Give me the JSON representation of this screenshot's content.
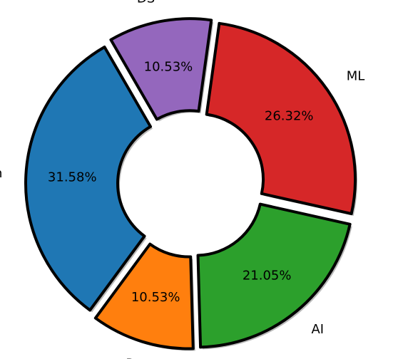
{
  "chart_data": {
    "type": "pie",
    "donut": true,
    "categories": [
      "python",
      "R",
      "AI",
      "ML",
      "DS"
    ],
    "values": [
      6,
      2,
      4,
      5,
      2
    ],
    "percent_labels": [
      "31.58%",
      "10.53%",
      "21.05%",
      "26.32%",
      "10.53%"
    ],
    "colors": [
      "#1f77b4",
      "#ff7f0e",
      "#2ca02c",
      "#d62728",
      "#9467bd"
    ],
    "exploded": [
      true,
      true,
      true,
      true,
      true
    ],
    "shadow": true,
    "edge_color": "#000000",
    "start_angle_deg": 120,
    "direction": "counterclockwise"
  }
}
